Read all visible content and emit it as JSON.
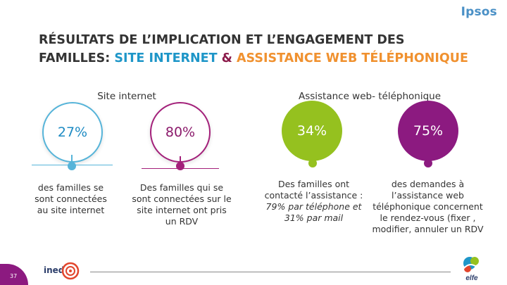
{
  "header": {
    "brand": "Ipsos"
  },
  "title": {
    "line1": "RÉSULTATS DE L’IMPLICATION ET L’ENGAGEMENT DES",
    "line2_prefix": "FAMILLES: ",
    "line2_site": "SITE INTERNET",
    "line2_amp": " & ",
    "line2_assist": "ASSISTANCE WEB TÉLÉPHONIQUE"
  },
  "columns": {
    "site_heading": "Site internet",
    "assist_heading": "Assistance web- téléphonique"
  },
  "stats": [
    {
      "value": "27%",
      "desc_lines": [
        "des familles se",
        "sont connectées",
        "au site internet"
      ]
    },
    {
      "value": "80%",
      "desc_lines": [
        "Des familles qui se",
        "sont connectées sur le",
        "site internet ont pris",
        "un RDV"
      ]
    },
    {
      "value": "34%",
      "desc_lines": [
        "Des familles ont",
        "contacté l’assistance :"
      ],
      "desc_italic": [
        "79% par téléphone et",
        "31% par mail"
      ]
    },
    {
      "value": "75%",
      "desc_lines": [
        "des demandes à",
        "l’assistance web",
        "téléphonique concernent",
        "le rendez-vous (fixer ,",
        "modifier, annuler un RDV"
      ]
    }
  ],
  "footer": {
    "page_number": "37",
    "ined_label": "ined",
    "elfe_label": "elfe"
  },
  "colors": {
    "blue": "#1e96c8",
    "purple": "#8c1a80",
    "green": "#95c11f",
    "orange": "#f0912f"
  }
}
